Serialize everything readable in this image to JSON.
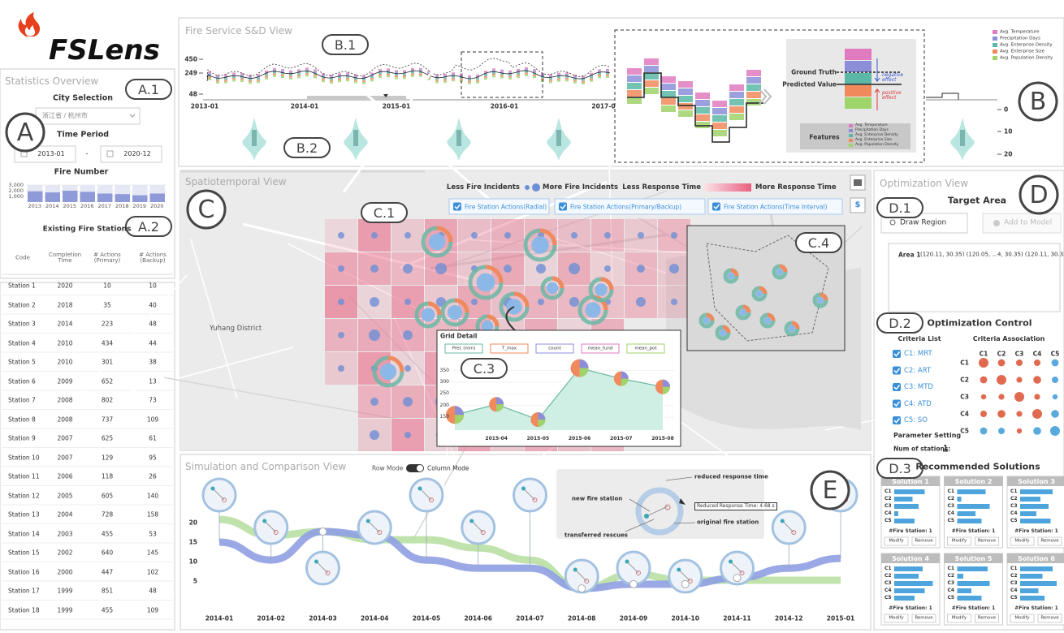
{
  "logo": "FSLens",
  "badges": {
    "A": "A",
    "A1": "A.1",
    "A2": "A.2",
    "B": "B",
    "B1": "B.1",
    "B2": "B.2",
    "C": "C",
    "C1": "C.1",
    "C3": "C.3",
    "C4": "C.4",
    "D": "D",
    "D1": "D.1",
    "D2": "D.2",
    "D3": "D.3",
    "E": "E"
  },
  "statistics": {
    "title": "Statistics Overview",
    "city_label": "City Selection",
    "city": "浙江省 / 杭州市",
    "period_label": "Time Period",
    "start": "2013-01",
    "separator": "-",
    "end": "2020-12",
    "fire": {
      "title": "Fire Number",
      "ylim": [
        0,
        3000
      ],
      "yticks": [
        {
          "value": 1000,
          "label": "1,000"
        },
        {
          "value": 2000,
          "label": "2,000"
        },
        {
          "value": 3000,
          "label": "3,000"
        }
      ],
      "categories": [
        "2013",
        "2014",
        "2015",
        "2016",
        "2017",
        "2018",
        "2019",
        "2020"
      ],
      "values": [
        1900,
        1700,
        2000,
        1800,
        1500,
        1400,
        1200,
        1500
      ],
      "color": "#8f9ad9"
    }
  },
  "stations": {
    "title": "Existing Fire Stations",
    "columns": [
      "Code",
      "Completion Time",
      "# Actions (Primary)",
      "# Actions (Backup)"
    ],
    "rows": [
      [
        "Station 1",
        "2020",
        "10",
        "10"
      ],
      [
        "Station 2",
        "2018",
        "35",
        "40"
      ],
      [
        "Station 3",
        "2014",
        "223",
        "48"
      ],
      [
        "Station 4",
        "2010",
        "434",
        "44"
      ],
      [
        "Station 5",
        "2010",
        "301",
        "38"
      ],
      [
        "Station 6",
        "2009",
        "652",
        "13"
      ],
      [
        "Station 7",
        "2008",
        "802",
        "73"
      ],
      [
        "Station 8",
        "2008",
        "737",
        "109"
      ],
      [
        "Station 9",
        "2007",
        "625",
        "61"
      ],
      [
        "Station 10",
        "2007",
        "129",
        "95"
      ],
      [
        "Station 11",
        "2006",
        "118",
        "26"
      ],
      [
        "Station 12",
        "2005",
        "605",
        "140"
      ],
      [
        "Station 13",
        "2004",
        "728",
        "158"
      ],
      [
        "Station 14",
        "2003",
        "455",
        "53"
      ],
      [
        "Station 15",
        "2002",
        "640",
        "145"
      ],
      [
        "Station 16",
        "2000",
        "447",
        "102"
      ],
      [
        "Station 17",
        "1999",
        "851",
        "48"
      ],
      [
        "Station 18",
        "1999",
        "455",
        "109"
      ]
    ]
  },
  "sd_view": {
    "title": "Fire Service S&D View",
    "yticks": [
      "450",
      "249",
      "48"
    ],
    "xticks": [
      "2013-01",
      "2014-01",
      "2015-01",
      "2016-01",
      "2017-0"
    ],
    "right_ticks": [
      "0",
      "10",
      "20"
    ],
    "features": [
      {
        "name": "Avg. Temperature",
        "color": "#e07bc0"
      },
      {
        "name": "Precipitation Days",
        "color": "#8c8fd8"
      },
      {
        "name": "Avg. Enterprise Density",
        "color": "#5bb8a6"
      },
      {
        "name": "Avg. Enterprise Size",
        "color": "#f08a5d"
      },
      {
        "name": "Avg. Population Density",
        "color": "#9fd46a"
      }
    ],
    "inset": {
      "ground_truth": "Ground Truth",
      "predicted": "Predicted Value",
      "negative": "negative effect",
      "positive": "positive effect",
      "features": "Features"
    }
  },
  "spatiotemporal": {
    "title": "Spatiotemporal View",
    "less_fire": "Less Fire Incidents",
    "more_fire": "More Fire Incidents",
    "less_time": "Less Response Time",
    "more_time": "More Response Time",
    "toggles": [
      "Fire Station Actions(Radial)",
      "Fire Station Actions(Primary/Backup)",
      "Fire Station Actions(Time Interval)"
    ],
    "district": "Yuhang District",
    "button": "$",
    "grid_detail": {
      "title": "Grid Detail",
      "legend": [
        "Prec (mm)",
        "T_max",
        "count",
        "mean_fund",
        "mean_pot"
      ],
      "ylim": [
        95,
        390
      ],
      "yticks": [
        150,
        200,
        250,
        300,
        350
      ],
      "x": [
        null,
        "2015-04",
        "2015-05",
        "2015-06",
        "2015-07",
        "2015-08"
      ],
      "values": [
        160,
        205,
        140,
        360,
        315,
        280
      ]
    }
  },
  "optimization": {
    "title": "Optimization View",
    "target": "Target Area",
    "draw": "Draw Region",
    "add": "Add to Model",
    "area_name": "Area 1",
    "area_coords": "(120.11, 30.35) (120.05, ...4, 30.35) (120.11, 30.35)",
    "control": "Optimization Control",
    "criteria_list": "Criteria List",
    "criteria_assoc": "Criteria Association",
    "criteria": [
      "C1: MRT",
      "C2: ART",
      "C3: MTD",
      "C4: ATD",
      "C5: SO"
    ],
    "codes": [
      "C1",
      "C2",
      "C3",
      "C4",
      "C5"
    ],
    "association": [
      [
        1,
        0.6,
        0.5,
        0.5,
        -0.6
      ],
      [
        0.6,
        1,
        0.4,
        0.7,
        -0.5
      ],
      [
        0.3,
        0.4,
        1,
        0.4,
        -0.3
      ],
      [
        0.5,
        0.7,
        0.4,
        1,
        -0.7
      ],
      [
        -0.6,
        -0.5,
        0.3,
        -0.7,
        -1
      ]
    ],
    "param": "Parameter Setting",
    "num_label": "Num of stations:",
    "num": "1",
    "recommended": "Recommended Solutions",
    "solutions": [
      {
        "name": "Solution 1",
        "values": [
          0.75,
          0.45,
          0.6,
          0.1,
          0.5
        ]
      },
      {
        "name": "Solution 2",
        "values": [
          0.7,
          0.1,
          0.8,
          0.45,
          0.6
        ]
      },
      {
        "name": "Solution 3",
        "values": [
          0.8,
          0.5,
          0.7,
          0.4,
          0.75
        ]
      },
      {
        "name": "Solution 4",
        "values": [
          0.7,
          0.6,
          0.95,
          0.75,
          0.5
        ]
      },
      {
        "name": "Solution 5",
        "values": [
          0.75,
          0.15,
          0.8,
          0.35,
          0.6
        ]
      },
      {
        "name": "Solution 6",
        "values": [
          0.8,
          0.55,
          0.9,
          0.45,
          0.6
        ]
      }
    ],
    "stations_label": "#Fire Station: 1",
    "modify": "Modify",
    "remove": "Remove"
  },
  "simulation": {
    "title": "Simulation and Comparison View",
    "row_mode": "Row Mode",
    "column_mode": "Column Mode",
    "ylim": [
      0,
      24
    ],
    "yticks": [
      5,
      10,
      15,
      20
    ],
    "x": [
      "2014-01",
      "2014-02",
      "2014-03",
      "2014-04",
      "2014-05",
      "2014-06",
      "2014-07",
      "2014-08",
      "2014-09",
      "2014-10",
      "2014-11",
      "2014-12",
      "2015-01"
    ],
    "series": [
      {
        "color": "#b9e0a4",
        "values": [
          20.8,
          16.7,
          17.7,
          15.6,
          15.6,
          13.5,
          10.4,
          3.1,
          6.7,
          5.2,
          5.2,
          5.2,
          5.2
        ]
      },
      {
        "color": "#8f9fe3",
        "values": [
          15,
          10.4,
          17.7,
          16.7,
          10.4,
          8.3,
          8.3,
          3.1,
          4.2,
          4.2,
          5.8,
          8.3,
          10.8
        ]
      }
    ],
    "annotation": {
      "new": "new fire station",
      "reduced": "reduced response time",
      "transferred": "transferred rescues",
      "original": "original fire station",
      "tooltip": "Reduced Response Time: 4.68 s"
    }
  }
}
